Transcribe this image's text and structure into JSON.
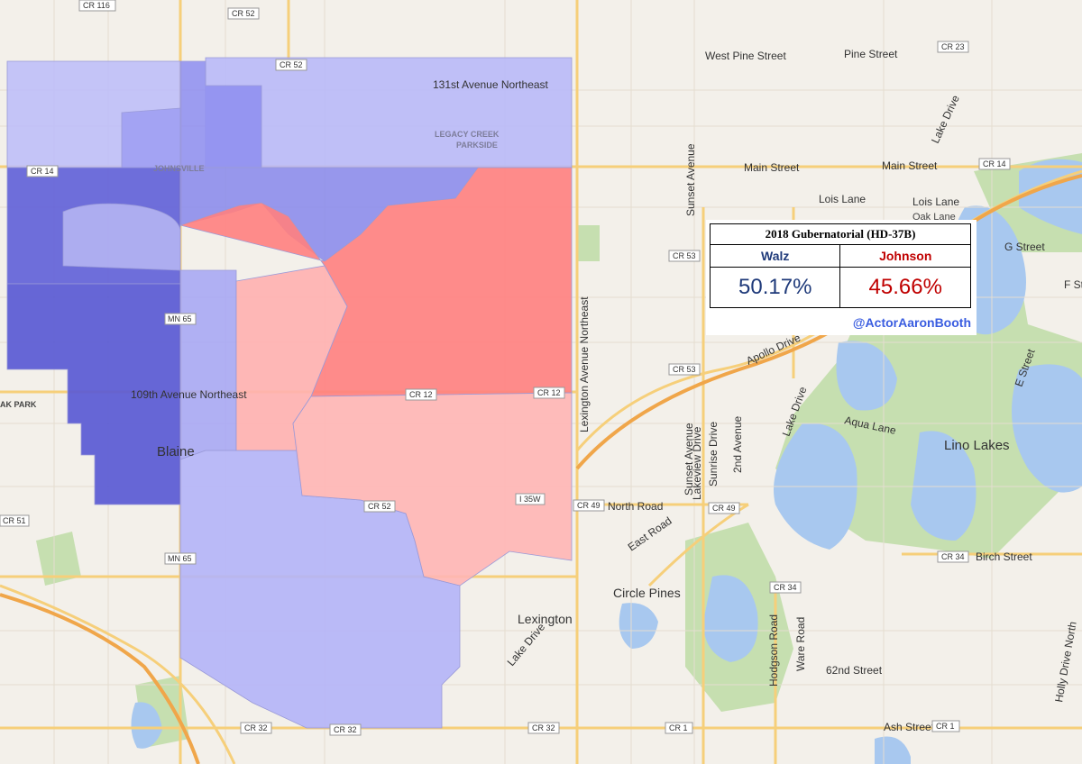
{
  "results": {
    "title": "2018 Gubernatorial (HD-37B)",
    "candidates": [
      {
        "name": "Walz",
        "percent": "50.17%",
        "color": "#1f3a7a"
      },
      {
        "name": "Johnson",
        "percent": "45.66%",
        "color": "#c00000"
      }
    ],
    "credit": "@ActorAaronBooth"
  },
  "map": {
    "places": {
      "blaine": "Blaine",
      "lexington": "Lexington",
      "circle_pines": "Circle Pines",
      "lino_lakes": "Lino Lakes",
      "johnsville": "JOHNSVILLE",
      "legacy_creek": "LEGACY CREEK",
      "parkside": "PARKSIDE",
      "oak_park": "AK PARK"
    },
    "streets": {
      "ave_131": "131st Avenue Northeast",
      "ave_109": "109th Avenue Northeast",
      "lexington_ave": "Lexington Avenue Northeast",
      "west_pine": "West Pine Street",
      "pine": "Pine Street",
      "main_1": "Main Street",
      "main_2": "Main Street",
      "lois_1": "Lois Lane",
      "lois_2": "Lois Lane",
      "oak_lane": "Oak Lane",
      "sunset": "Sunset Avenue",
      "lake_drive_1": "Lake Drive",
      "lake_drive_2": "Lake Drive",
      "lake_drive_3": "Lake Drive",
      "g_street": "G Street",
      "f_street": "F Street",
      "e_street": "E Street",
      "apollo": "Apollo Drive",
      "aqua": "Aqua Lane",
      "north_road": "North Road",
      "east_road": "East Road",
      "birch": "Birch Street",
      "lakeview": "Lakeview Drive",
      "sunset_ave2": "Sunset Avenue",
      "sunrise": "Sunrise Drive",
      "second_ave": "2nd Avenue",
      "hodgson": "Hodgson Road",
      "ware": "Ware Road",
      "holly": "Holly Drive North",
      "sixty_second": "62nd Street",
      "ash": "Ash Street"
    },
    "shields": {
      "cr116": "CR 116",
      "cr52_top": "CR 52",
      "cr52_b": "CR 52",
      "cr23": "CR 23",
      "cr14_a": "CR 14",
      "cr14_b": "CR 14",
      "cr53_a": "CR 53",
      "cr53_b": "CR 53",
      "cr12_a": "CR 12",
      "cr12_b": "CR 12",
      "mn65_a": "MN 65",
      "mn65_b": "MN 65",
      "cr51": "CR 51",
      "cr52_c": "CR 52",
      "i35w": "I 35W",
      "cr49_a": "CR 49",
      "cr49_b": "CR 49",
      "cr34_a": "CR 34",
      "cr34_b": "CR 34",
      "cr32_a": "CR 32",
      "cr32_b": "CR 32",
      "cr32_c": "CR 32",
      "cr1_a": "CR 1",
      "cr1_b": "CR 1"
    }
  }
}
